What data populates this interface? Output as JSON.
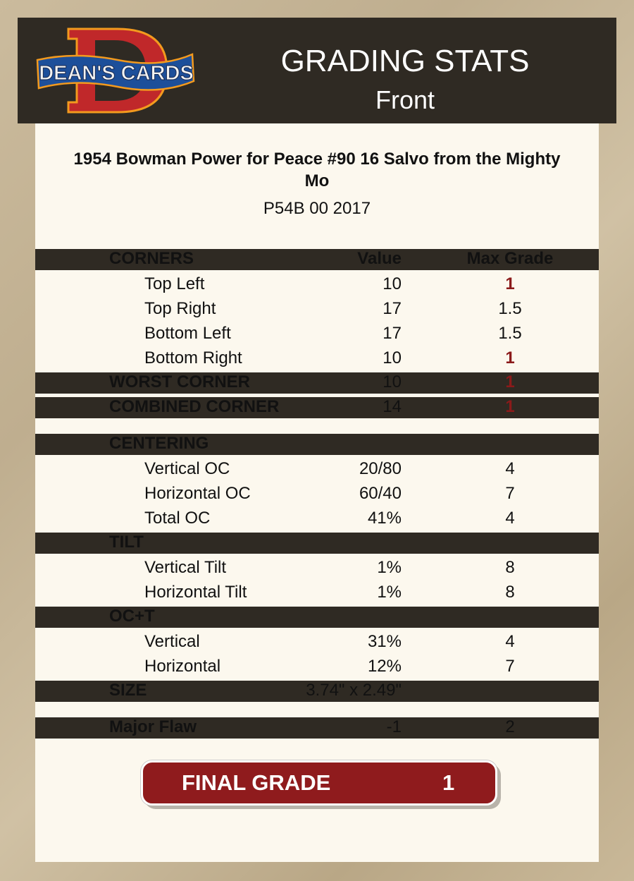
{
  "brand": {
    "logo_text": "DEAN'S CARDS",
    "logo_letter": "D"
  },
  "header": {
    "title": "GRADING STATS",
    "subtitle": "Front"
  },
  "card": {
    "name": "1954 Bowman Power for Peace #90  16 Salvo from the Mighty Mo",
    "code": "P54B 00 2017"
  },
  "columns": {
    "value": "Value",
    "max": "Max Grade"
  },
  "rows": [
    {
      "label": "CORNERS",
      "type": "header",
      "value": "",
      "max": ""
    },
    {
      "label": "Top Left",
      "type": "item",
      "value": "10",
      "max": "1",
      "highlight": true
    },
    {
      "label": "Top Right",
      "type": "item",
      "value": "17",
      "max": "1.5"
    },
    {
      "label": "Bottom Left",
      "type": "item",
      "value": "17",
      "max": "1.5"
    },
    {
      "label": "Bottom Right",
      "type": "item",
      "value": "10",
      "max": "1",
      "highlight": true
    },
    {
      "label": "WORST CORNER",
      "type": "header",
      "value": "10",
      "max": "1",
      "highlight": true
    },
    {
      "label": "COMBINED CORNER",
      "type": "header",
      "value": "14",
      "max": "1",
      "highlight": true
    },
    {
      "label": "CENTERING",
      "type": "header",
      "value": "",
      "max": ""
    },
    {
      "label": "Vertical OC",
      "type": "item",
      "value": "20/80",
      "max": "4"
    },
    {
      "label": "Horizontal OC",
      "type": "item",
      "value": "60/40",
      "max": "7"
    },
    {
      "label": "Total OC",
      "type": "item",
      "value": "41%",
      "max": "4"
    },
    {
      "label": "TILT",
      "type": "header",
      "value": "",
      "max": ""
    },
    {
      "label": "Vertical Tilt",
      "type": "item",
      "value": "1%",
      "max": "8"
    },
    {
      "label": "Horizontal Tilt",
      "type": "item",
      "value": "1%",
      "max": "8"
    },
    {
      "label": "OC+T",
      "type": "header",
      "value": "",
      "max": ""
    },
    {
      "label": "Vertical",
      "type": "item",
      "value": "31%",
      "max": "4"
    },
    {
      "label": "Horizontal",
      "type": "item",
      "value": "12%",
      "max": "7"
    },
    {
      "label": "SIZE",
      "type": "header",
      "value": "3.74\" x 2.49\"",
      "max": ""
    },
    {
      "label": "Major Flaw",
      "type": "header",
      "value": "-1",
      "max": "2"
    }
  ],
  "final": {
    "label": "FINAL GRADE",
    "value": "1"
  },
  "colors": {
    "header_bg": "#2f2a23",
    "card_bg": "#fcf8ee",
    "accent_red": "#8f1b1d",
    "highlight_text": "#8b1a1a"
  }
}
